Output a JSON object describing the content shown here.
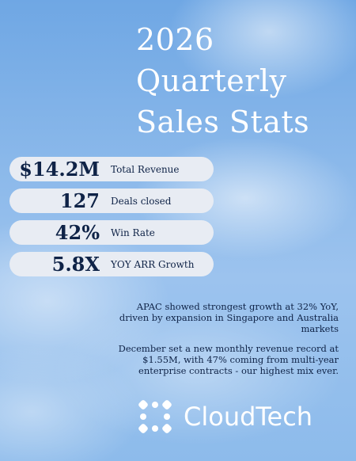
{
  "title": {
    "line1": "2026",
    "line2": "Quarterly",
    "line3": "Sales Stats"
  },
  "stats": [
    {
      "value": "$14.2M",
      "label": "Total Revenue"
    },
    {
      "value": "127",
      "label": "Deals closed"
    },
    {
      "value": "42%",
      "label": "Win Rate"
    },
    {
      "value": "5.8X",
      "label": "YOY ARR Growth"
    }
  ],
  "notes": [
    "APAC showed strongest growth at 32% YoY, driven by expansion in Singapore and Australia markets",
    "December set a new monthly revenue record at $1.55M, with 47% coming from multi-year enterprise contracts - our highest mix ever."
  ],
  "brand": {
    "name": "CloudTech",
    "logo_icon": "flower-cross-icon"
  },
  "colors": {
    "navy": "#0f2347",
    "pill_bg": "#e8ecf3",
    "white": "#ffffff"
  }
}
